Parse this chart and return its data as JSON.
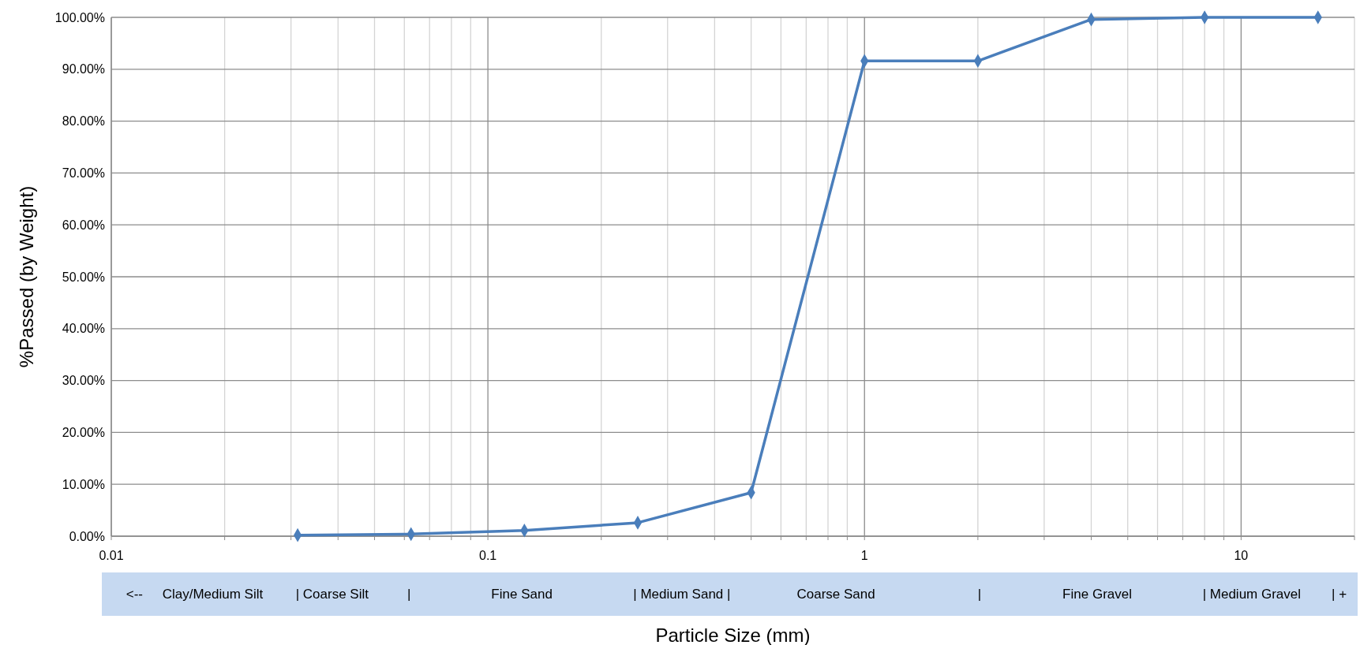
{
  "chart_data": {
    "type": "line",
    "xlabel": "Particle Size (mm)",
    "ylabel": "%Passed (by Weight)",
    "log": "x",
    "x": [
      0.03125,
      0.0625,
      0.125,
      0.25,
      0.5,
      1,
      2,
      4,
      8,
      16
    ],
    "series": [
      {
        "color": "#4a7ebb",
        "values": [
          0.2,
          0.4,
          1.1,
          2.6,
          8.4,
          91.6,
          91.6,
          99.6,
          100,
          100
        ]
      }
    ],
    "xlim": [
      0.01,
      20
    ],
    "xticks": [
      0.01,
      {
        "value": 0.02,
        "label": null
      },
      {
        "value": 0.03,
        "label": null
      },
      {
        "value": 0.04,
        "label": null
      },
      {
        "value": 0.05,
        "label": null
      },
      {
        "value": 0.06,
        "label": null
      },
      {
        "value": 0.07,
        "label": null
      },
      {
        "value": 0.08,
        "label": null
      },
      {
        "value": 0.09,
        "label": null
      },
      0.1,
      {
        "value": 0.2,
        "label": null
      },
      {
        "value": 0.3,
        "label": null
      },
      {
        "value": 0.4,
        "label": null
      },
      {
        "value": 0.5,
        "label": null
      },
      {
        "value": 0.6,
        "label": null
      },
      {
        "value": 0.7,
        "label": null
      },
      {
        "value": 0.8,
        "label": null
      },
      {
        "value": 0.9,
        "label": null
      },
      1,
      {
        "value": 2,
        "label": null
      },
      {
        "value": 3,
        "label": null
      },
      {
        "value": 4,
        "label": null
      },
      {
        "value": 5,
        "label": null
      },
      {
        "value": 6,
        "label": null
      },
      {
        "value": 7,
        "label": null
      },
      {
        "value": 8,
        "label": null
      },
      {
        "value": 9,
        "label": null
      },
      10,
      {
        "value": 20,
        "label": null
      }
    ],
    "ylim": [
      0,
      100
    ],
    "yticks": [
      {
        "value": 0,
        "label": "0.00%"
      },
      {
        "value": 10,
        "label": "10.00%"
      },
      {
        "value": 20,
        "label": "20.00%"
      },
      {
        "value": 30,
        "label": "30.00%"
      },
      {
        "value": 40,
        "label": "40.00%"
      },
      {
        "value": 50,
        "label": "50.00%"
      },
      {
        "value": 60,
        "label": "60.00%"
      },
      {
        "value": 70,
        "label": "70.00%"
      },
      {
        "value": 80,
        "label": "80.00%"
      },
      {
        "value": 90,
        "label": "90.00%"
      },
      {
        "value": 100,
        "label": "100.00%"
      }
    ],
    "grid": true,
    "marker": "diamond",
    "line_style": "solid",
    "annotations": [
      "<--",
      "Clay/Medium Silt",
      "| Coarse Silt",
      "|",
      "Fine Sand",
      "| Medium Sand |",
      "Coarse Sand",
      "|",
      "Fine Gravel",
      "| Medium Gravel",
      "| +"
    ]
  }
}
